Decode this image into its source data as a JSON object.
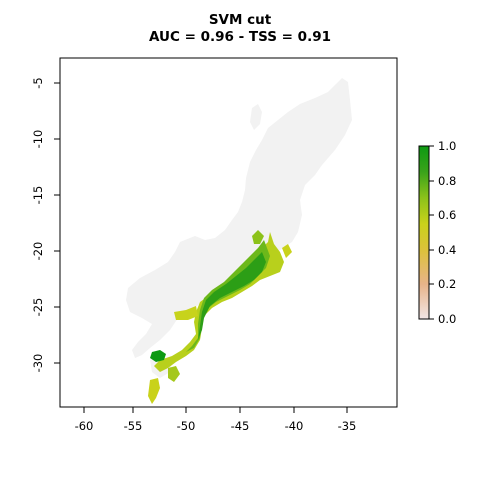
{
  "title": "SVM cut",
  "subtitle": "AUC = 0.96 - TSS = 0.91",
  "map": {
    "x_ticks": [
      "-60",
      "-55",
      "-50",
      "-45",
      "-40",
      "-35"
    ],
    "y_ticks": [
      "-5",
      "-10",
      "-15",
      "-20",
      "-25",
      "-30"
    ],
    "x_range": [
      -62,
      -30.5
    ],
    "y_range": [
      -33.8,
      -2.4
    ],
    "background_region_color": "#f2f2f2",
    "palette": [
      "#f2e6e6",
      "#e8b48a",
      "#dcc23a",
      "#c9d21b",
      "#8cc21a",
      "#3aa31a",
      "#0d9a12"
    ]
  },
  "legend": {
    "labels": [
      "1.0",
      "0.8",
      "0.6",
      "0.4",
      "0.2",
      "0.0"
    ],
    "range": [
      0,
      1
    ]
  }
}
